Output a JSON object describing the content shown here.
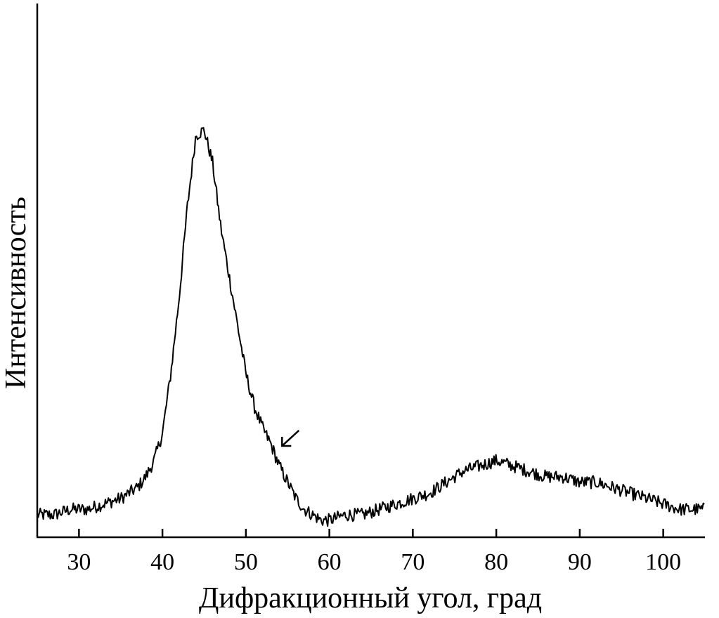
{
  "chart_data": {
    "type": "line",
    "title": "",
    "xlabel": "Дифракционный угол, град",
    "ylabel": "Интенсивность",
    "xlim": [
      25,
      105
    ],
    "ylim": [
      0,
      100
    ],
    "xticks": [
      "30",
      "40",
      "50",
      "60",
      "70",
      "80",
      "90",
      "100"
    ],
    "xtick_values": [
      30,
      40,
      50,
      60,
      70,
      80,
      90,
      100
    ],
    "y_tick_labels_shown": false,
    "grid": false,
    "legend": "none",
    "line_color": "#000000",
    "series": [
      {
        "x": [
          25,
          27,
          29,
          31,
          33,
          35,
          37,
          38,
          39,
          40,
          41,
          42,
          43,
          44,
          45,
          46,
          47,
          48,
          49,
          50,
          51,
          52,
          53,
          54,
          55,
          56,
          57,
          58,
          59,
          60,
          62,
          64,
          66,
          68,
          70,
          72,
          74,
          76,
          78,
          80,
          82,
          84,
          86,
          88,
          90,
          92,
          94,
          96,
          98,
          100,
          102,
          104,
          105
        ],
        "y": [
          5,
          5,
          6,
          6,
          7,
          8,
          10,
          12,
          15,
          20,
          31,
          45,
          62,
          75,
          76,
          70,
          58,
          49,
          40,
          31,
          25,
          21,
          18,
          14,
          11,
          8,
          6,
          5,
          4,
          4,
          5,
          5,
          6,
          7,
          8,
          9,
          11,
          13,
          14,
          15,
          14,
          13,
          12,
          12,
          11,
          11,
          10,
          9,
          8,
          7,
          6,
          6,
          6
        ]
      }
    ],
    "annotations": [
      {
        "type": "arrow",
        "x": 54.5,
        "y": 19,
        "direction": "lower-left"
      }
    ]
  }
}
